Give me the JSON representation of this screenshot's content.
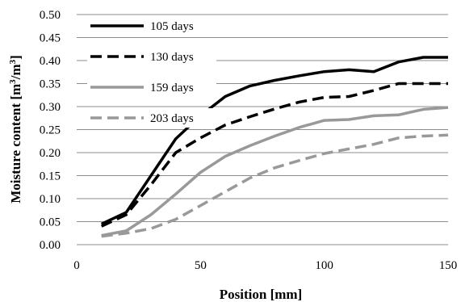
{
  "chart_data": {
    "type": "line",
    "xlabel": "Position [mm]",
    "ylabel": "Moisture content [m3/m3]",
    "ylabel_parts": {
      "main": "Moisture content [m",
      "sup1": "3",
      "mid": "/m",
      "sup2": "3",
      "end": "]"
    },
    "xlim": [
      0,
      150
    ],
    "ylim": [
      0.0,
      0.5
    ],
    "xticks": [
      0,
      50,
      100,
      150
    ],
    "xtick_labels": [
      "0",
      "50",
      "100",
      "150"
    ],
    "yticks": [
      0.0,
      0.05,
      0.1,
      0.15,
      0.2,
      0.25,
      0.3,
      0.35,
      0.4,
      0.45,
      0.5
    ],
    "ytick_labels": [
      "0.00",
      "0.05",
      "0.10",
      "0.15",
      "0.20",
      "0.25",
      "0.30",
      "0.35",
      "0.40",
      "0.45",
      "0.50"
    ],
    "grid": "horizontal",
    "legend_position": "top-left",
    "series": [
      {
        "name": "105 days",
        "color": "#000000",
        "dash": "solid",
        "x": [
          10,
          20,
          30,
          40,
          50,
          60,
          70,
          80,
          90,
          100,
          110,
          120,
          130,
          140,
          150
        ],
        "y": [
          0.045,
          0.07,
          0.15,
          0.23,
          0.28,
          0.322,
          0.345,
          0.357,
          0.367,
          0.376,
          0.38,
          0.376,
          0.397,
          0.407,
          0.407
        ]
      },
      {
        "name": "130 days",
        "color": "#000000",
        "dash": "dashed",
        "x": [
          10,
          20,
          30,
          40,
          50,
          60,
          70,
          80,
          90,
          100,
          110,
          120,
          130,
          140,
          150
        ],
        "y": [
          0.04,
          0.065,
          0.13,
          0.2,
          0.232,
          0.26,
          0.278,
          0.295,
          0.31,
          0.32,
          0.322,
          0.335,
          0.35,
          0.35,
          0.35
        ]
      },
      {
        "name": "159 days",
        "color": "#999999",
        "dash": "solid",
        "x": [
          10,
          20,
          30,
          40,
          50,
          60,
          70,
          80,
          90,
          100,
          110,
          120,
          130,
          140,
          150
        ],
        "y": [
          0.02,
          0.03,
          0.065,
          0.11,
          0.157,
          0.192,
          0.215,
          0.236,
          0.255,
          0.27,
          0.272,
          0.28,
          0.282,
          0.294,
          0.298
        ]
      },
      {
        "name": "203 days",
        "color": "#999999",
        "dash": "dashed",
        "x": [
          10,
          20,
          30,
          40,
          50,
          60,
          70,
          80,
          90,
          100,
          110,
          120,
          130,
          140,
          150
        ],
        "y": [
          0.018,
          0.025,
          0.035,
          0.055,
          0.085,
          0.115,
          0.145,
          0.167,
          0.183,
          0.198,
          0.208,
          0.218,
          0.232,
          0.236,
          0.238
        ]
      }
    ]
  }
}
